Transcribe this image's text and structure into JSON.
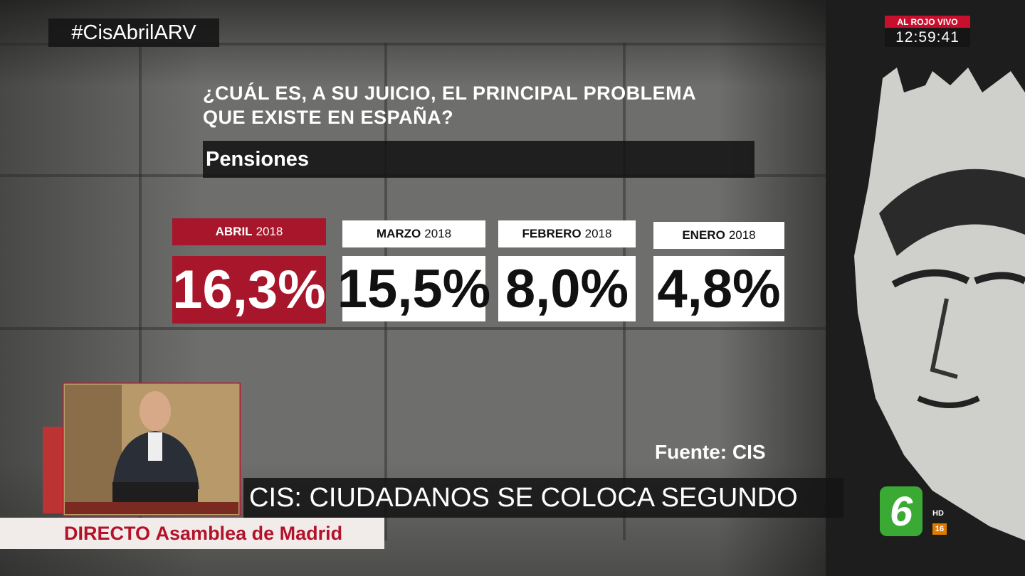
{
  "header": {
    "hashtag": "#CisAbrilARV",
    "channel": "AL ROJO VIVO",
    "clock": "12:59:41"
  },
  "graphic": {
    "question": [
      "¿CUÁL ES, A SU JUICIO, EL PRINCIPAL PROBLEMA",
      "QUE EXISTE EN ESPAÑA?"
    ],
    "topic": "Pensiones",
    "panels": [
      {
        "month": "ABRIL",
        "year": "2018",
        "value": "16,3%"
      },
      {
        "month": "MARZO",
        "year": "2018",
        "value": "15,5%"
      },
      {
        "month": "FEBRERO",
        "year": "2018",
        "value": "8,0%"
      },
      {
        "month": "ENERO",
        "year": "2018",
        "value": "4,8%"
      }
    ],
    "source": "Fuente: CIS"
  },
  "lower_third": {
    "headline": "CIS: CIUDADANOS SE COLOCA SEGUNDO",
    "live": "DIRECTO",
    "place": "Asamblea de Madrid"
  },
  "logo": {
    "mark": "6",
    "hd": "HD",
    "rating": "16"
  }
}
